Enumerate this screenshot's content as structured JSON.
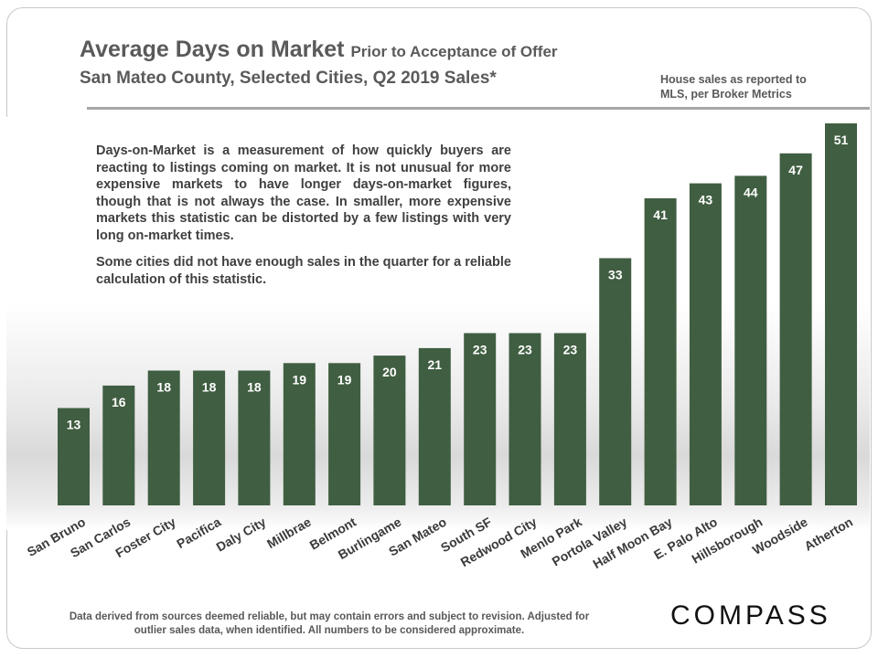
{
  "header": {
    "title": "Average Days on Market",
    "title_suffix": "Prior to Acceptance of Offer",
    "subtitle": "San Mateo County, Selected Cities, Q2 2019 Sales*",
    "source_note": "House sales as reported to MLS, per Broker Metrics"
  },
  "note": {
    "paragraph1": "Days-on-Market is a measurement of how quickly buyers are reacting to listings coming on market. It is not unusual for more expensive markets to have longer days-on-market figures, though that is not always the case. In smaller, more expensive markets this statistic can be distorted by a few listings with very long on-market times.",
    "paragraph2": "Some cities did not have enough sales in the quarter for a reliable calculation of this statistic."
  },
  "footer": {
    "disclaimer": "Data derived from sources deemed reliable, but may contain errors and subject to revision. Adjusted for outlier sales data, when identified. All numbers to be considered approximate.",
    "logo": "COMPASS"
  },
  "colors": {
    "bar": "#405e41",
    "bar_label": "#ffffff",
    "axis_label": "#3a3a3a"
  },
  "chart_data": {
    "type": "bar",
    "title": "Average Days on Market",
    "categories": [
      "San Bruno",
      "San Carlos",
      "Foster City",
      "Pacifica",
      "Daly City",
      "Millbrae",
      "Belmont",
      "Burlingame",
      "San Mateo",
      "South SF",
      "Redwood City",
      "Menlo Park",
      "Portola Valley",
      "Half Moon Bay",
      "E. Palo Alto",
      "Hillsborough",
      "Woodside",
      "Atherton"
    ],
    "values": [
      13,
      16,
      18,
      18,
      18,
      19,
      19,
      20,
      21,
      23,
      23,
      23,
      33,
      41,
      43,
      44,
      47,
      51
    ],
    "ylim": [
      0,
      51
    ],
    "grid": false,
    "data_labels": true
  }
}
